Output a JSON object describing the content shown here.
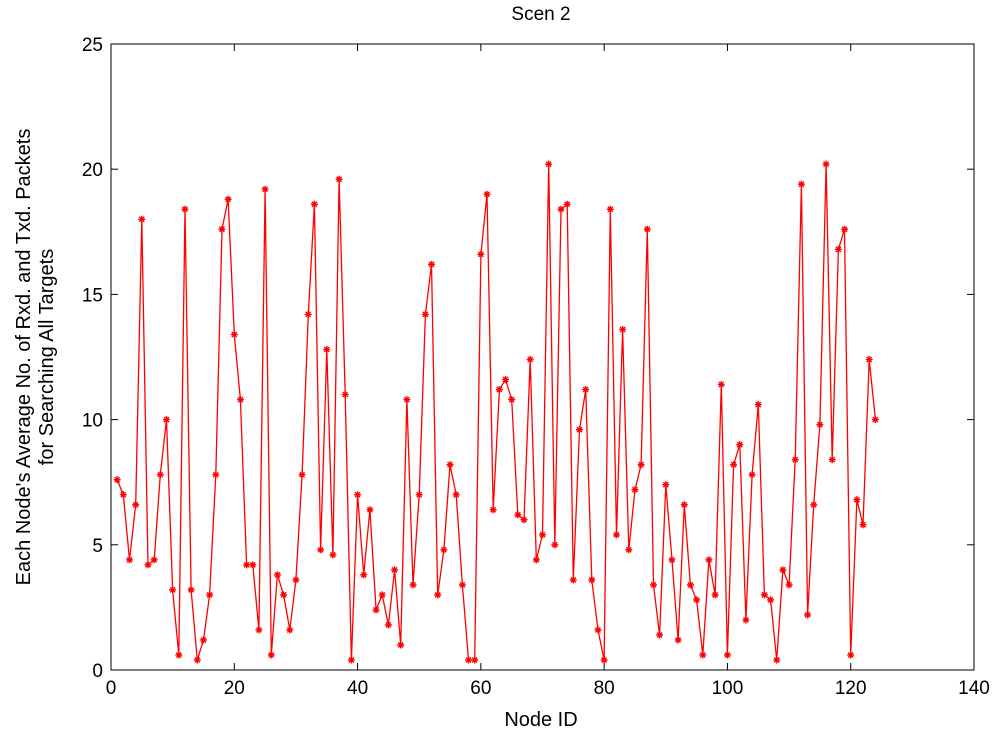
{
  "chart_data": {
    "type": "line",
    "title": "Scen 2",
    "xlabel": "Node ID",
    "ylabel_lines": [
      "Each Node's Average No. of Rxd. and Txd. Packets",
      "for Searching All Targets"
    ],
    "xlim": [
      0,
      140
    ],
    "ylim": [
      0,
      25
    ],
    "x_ticks": [
      0,
      20,
      40,
      60,
      80,
      100,
      120,
      140
    ],
    "y_ticks": [
      0,
      5,
      10,
      15,
      20,
      25
    ],
    "grid": false,
    "legend": "none",
    "series": [
      {
        "color": "#ff0000",
        "marker": "star",
        "x": [
          1,
          2,
          3,
          4,
          5,
          6,
          7,
          8,
          9,
          10,
          11,
          12,
          13,
          14,
          15,
          16,
          17,
          18,
          19,
          20,
          21,
          22,
          23,
          24,
          25,
          26,
          27,
          28,
          29,
          30,
          31,
          32,
          33,
          34,
          35,
          36,
          37,
          38,
          39,
          40,
          41,
          42,
          43,
          44,
          45,
          46,
          47,
          48,
          49,
          50,
          51,
          52,
          53,
          54,
          55,
          56,
          57,
          58,
          59,
          60,
          61,
          62,
          63,
          64,
          65,
          66,
          67,
          68,
          69,
          70,
          71,
          72,
          73,
          74,
          75,
          76,
          77,
          78,
          79,
          80,
          81,
          82,
          83,
          84,
          85,
          86,
          87,
          88,
          89,
          90,
          91,
          92,
          93,
          94,
          95,
          96,
          97,
          98,
          99,
          100,
          101,
          102,
          103,
          104,
          105,
          106,
          107,
          108,
          109,
          110,
          111,
          112,
          113,
          114,
          115,
          116,
          117,
          118,
          119,
          120,
          121,
          122,
          123,
          124
        ],
        "y": [
          7.6,
          7.0,
          4.4,
          6.6,
          18.0,
          4.2,
          4.4,
          7.8,
          10.0,
          3.2,
          0.6,
          18.4,
          3.2,
          0.4,
          1.2,
          3.0,
          7.8,
          17.6,
          18.8,
          13.4,
          10.8,
          4.2,
          4.2,
          1.6,
          19.2,
          0.6,
          3.8,
          3.0,
          1.6,
          3.6,
          7.8,
          14.2,
          18.6,
          4.8,
          12.8,
          4.6,
          19.6,
          11.0,
          0.4,
          7.0,
          3.8,
          6.4,
          2.4,
          3.0,
          1.8,
          4.0,
          1.0,
          10.8,
          3.4,
          7.0,
          14.2,
          16.2,
          3.0,
          4.8,
          8.2,
          7.0,
          3.4,
          0.4,
          0.4,
          16.6,
          19.0,
          6.4,
          11.2,
          11.6,
          10.8,
          6.2,
          6.0,
          12.4,
          4.4,
          5.4,
          20.2,
          5.0,
          18.4,
          18.6,
          3.6,
          9.6,
          11.2,
          3.6,
          1.6,
          0.4,
          18.4,
          5.4,
          13.6,
          4.8,
          7.2,
          8.2,
          17.6,
          3.4,
          1.4,
          7.4,
          4.4,
          1.2,
          6.6,
          3.4,
          2.8,
          0.6,
          4.4,
          3.0,
          11.4,
          0.6,
          8.2,
          9.0,
          2.0,
          7.8,
          10.6,
          3.0,
          2.8,
          0.4,
          4.0,
          3.4,
          8.4,
          19.4,
          2.2,
          6.6,
          9.8,
          20.2,
          8.4,
          16.8,
          17.6,
          0.6,
          6.8,
          5.8,
          12.4,
          10.0
        ]
      }
    ]
  }
}
